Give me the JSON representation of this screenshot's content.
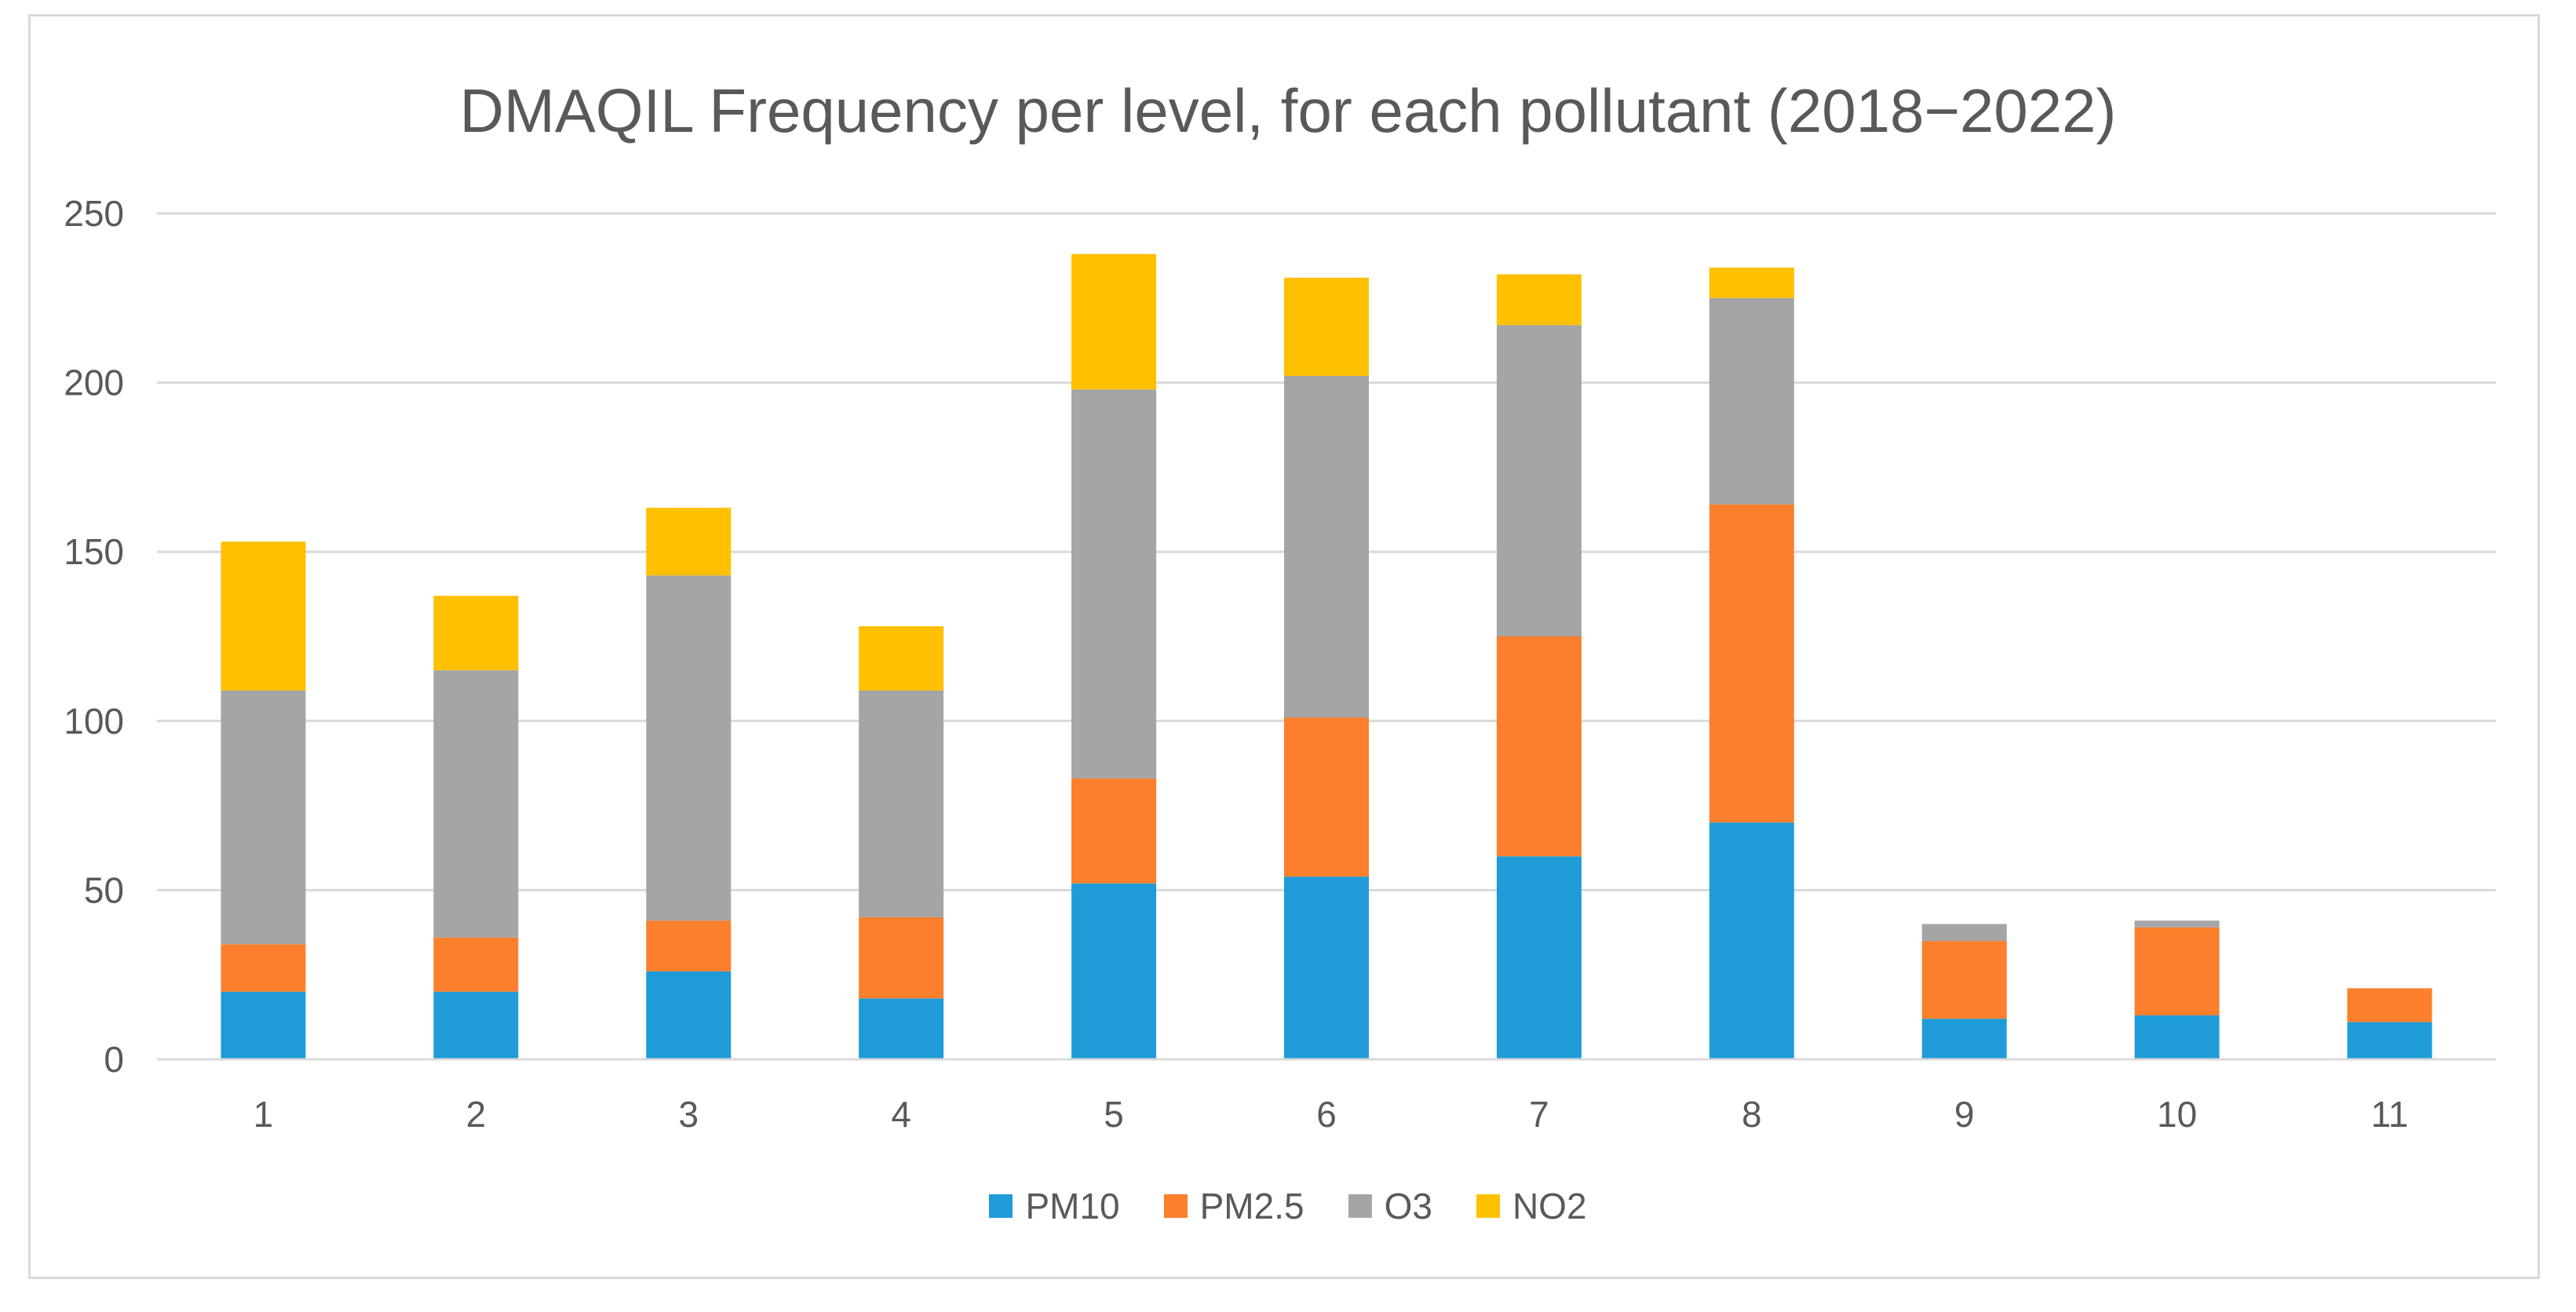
{
  "chart_data": {
    "type": "bar",
    "stacked": true,
    "title": "DMAQIL Frequency per level, for each pollutant (2018−2022)",
    "xlabel": "",
    "ylabel": "",
    "ylim": [
      0,
      250
    ],
    "yticks": [
      "0",
      "50",
      "100",
      "150",
      "200",
      "250"
    ],
    "categories": [
      "1",
      "2",
      "3",
      "4",
      "5",
      "6",
      "7",
      "8",
      "9",
      "10",
      "11"
    ],
    "grid": true,
    "legend_position": "bottom",
    "series": [
      {
        "name": "PM10",
        "color": "#1f9cd8",
        "values": [
          20,
          20,
          26,
          18,
          52,
          54,
          60,
          70,
          12,
          13,
          11
        ]
      },
      {
        "name": "PM2.5",
        "color": "#fb7f2c",
        "values": [
          14,
          16,
          15,
          24,
          31,
          47,
          65,
          94,
          23,
          26,
          10
        ]
      },
      {
        "name": "O3",
        "color": "#a5a5a5",
        "values": [
          75,
          79,
          102,
          67,
          115,
          101,
          92,
          61,
          5,
          2,
          0
        ]
      },
      {
        "name": "NO2",
        "color": "#ffc000",
        "values": [
          44,
          22,
          20,
          19,
          40,
          29,
          15,
          9,
          0,
          0,
          0
        ]
      }
    ]
  }
}
